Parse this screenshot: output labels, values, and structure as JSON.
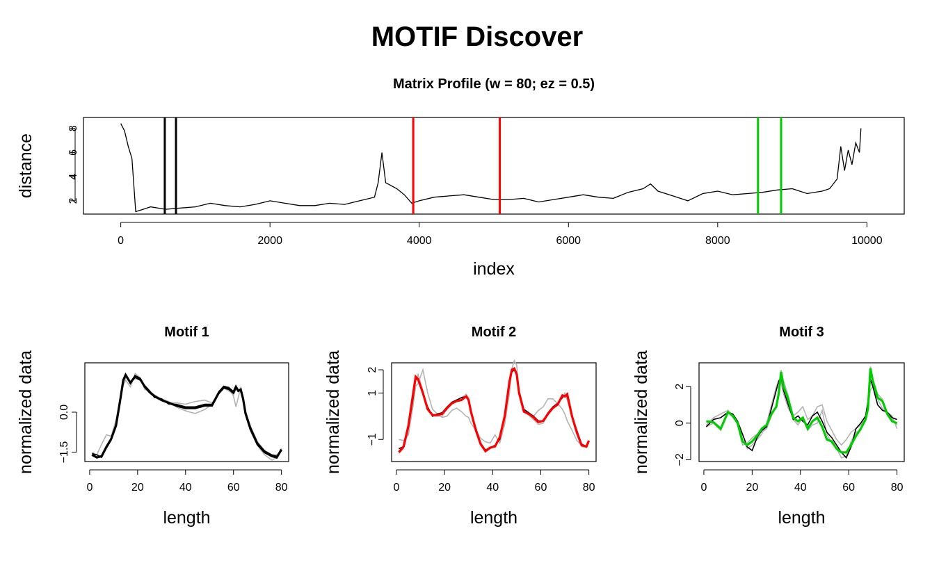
{
  "title": "MOTIF Discover",
  "colors": {
    "motif1": "#000000",
    "motif2": "#ff0000",
    "motif3": "#00cd00",
    "neighbor": "#b3b3b3",
    "profile": "#000000"
  },
  "chart_data": [
    {
      "type": "line",
      "title": "Matrix Profile (w = 80; ez = 0.5)",
      "xlabel": "index",
      "ylabel": "distance",
      "xlim": [
        -500,
        10500
      ],
      "ylim": [
        0.9,
        8.9
      ],
      "xticks": [
        "0",
        "2000",
        "4000",
        "6000",
        "8000",
        "10000"
      ],
      "yticks": [
        "2",
        "4",
        "6",
        "8"
      ],
      "x": [
        0,
        50,
        100,
        150,
        200,
        300,
        400,
        600,
        800,
        1000,
        1200,
        1400,
        1600,
        1800,
        2000,
        2200,
        2400,
        2600,
        2800,
        3000,
        3200,
        3400,
        3450,
        3500,
        3550,
        3700,
        3800,
        3900,
        4000,
        4200,
        4400,
        4600,
        4800,
        5000,
        5200,
        5400,
        5600,
        5800,
        6000,
        6200,
        6400,
        6600,
        6800,
        7000,
        7100,
        7200,
        7400,
        7600,
        7800,
        8000,
        8200,
        8400,
        8600,
        8800,
        9000,
        9200,
        9400,
        9500,
        9600,
        9650,
        9700,
        9750,
        9800,
        9850,
        9900,
        9920
      ],
      "y": [
        8.4,
        7.8,
        6.5,
        5.5,
        1.1,
        1.3,
        1.5,
        1.3,
        1.4,
        1.5,
        1.8,
        1.6,
        1.5,
        1.7,
        2.0,
        1.8,
        1.6,
        1.6,
        1.8,
        1.7,
        2.0,
        2.3,
        3.5,
        6.0,
        3.5,
        3.0,
        2.5,
        1.8,
        2.0,
        2.3,
        2.4,
        2.5,
        2.3,
        2.1,
        2.1,
        2.2,
        1.9,
        2.1,
        2.3,
        2.5,
        2.3,
        2.2,
        2.7,
        3.0,
        3.4,
        2.8,
        2.4,
        2.0,
        2.6,
        2.8,
        2.5,
        2.6,
        2.7,
        2.9,
        3.0,
        2.6,
        2.8,
        3.0,
        3.8,
        6.5,
        4.5,
        6.2,
        5.0,
        6.8,
        6.0,
        8.0
      ],
      "motif_markers": [
        {
          "motif": "1",
          "x": [
            590,
            740
          ]
        },
        {
          "motif": "2",
          "x": [
            3920,
            5080
          ]
        },
        {
          "motif": "3",
          "x": [
            8540,
            8850
          ]
        }
      ]
    },
    {
      "type": "line",
      "title": "Motif 1",
      "xlabel": "length",
      "ylabel": "normalized data",
      "xlim": [
        -2,
        83
      ],
      "ylim": [
        -1.85,
        1.85
      ],
      "xticks": [
        "0",
        "20",
        "40",
        "60",
        "80"
      ],
      "yticks": [
        "-1.5",
        "0.0"
      ],
      "x": [
        1,
        3,
        5,
        7,
        9,
        11,
        13,
        14,
        15,
        17,
        19,
        21,
        23,
        25,
        27,
        30,
        33,
        36,
        40,
        44,
        48,
        51,
        54,
        56,
        58,
        60,
        61,
        62,
        63,
        64,
        65,
        67,
        70,
        73,
        76,
        78,
        80
      ],
      "series": [
        {
          "values": [
            -1.6,
            -1.7,
            -1.65,
            -1.3,
            -1.0,
            -0.5,
            0.6,
            1.2,
            1.4,
            1.1,
            1.35,
            1.25,
            0.95,
            0.75,
            0.6,
            0.45,
            0.35,
            0.25,
            0.15,
            0.15,
            0.25,
            0.25,
            0.75,
            0.95,
            0.9,
            0.75,
            0.95,
            0.8,
            0.85,
            0.5,
            -0.05,
            -0.6,
            -1.2,
            -1.5,
            -1.65,
            -1.7,
            -1.4
          ]
        },
        {
          "values": [
            -1.55,
            -1.6,
            -1.7,
            -1.35,
            -1.05,
            -0.45,
            0.55,
            1.15,
            1.35,
            1.15,
            1.3,
            1.2,
            1.0,
            0.8,
            0.55,
            0.5,
            0.3,
            0.3,
            0.2,
            0.2,
            0.3,
            0.3,
            0.7,
            0.9,
            0.85,
            0.7,
            0.9,
            0.85,
            0.8,
            0.45,
            0.0,
            -0.55,
            -1.15,
            -1.45,
            -1.6,
            -1.65,
            -1.45
          ]
        },
        {
          "values": [
            -1.6,
            -1.6,
            -1.2,
            -0.85,
            -0.9,
            -0.3,
            0.6,
            1.0,
            1.2,
            0.95,
            1.45,
            1.3,
            0.85,
            0.8,
            0.65,
            0.5,
            0.4,
            0.2,
            0.05,
            -0.05,
            0.1,
            0.3,
            0.8,
            0.9,
            0.95,
            0.6,
            0.2,
            0.55,
            0.95,
            0.45,
            -0.1,
            -0.7,
            -1.25,
            -1.6,
            -1.8,
            -1.7,
            -1.35
          ]
        },
        {
          "values": [
            -1.5,
            -1.6,
            -1.65,
            -1.3,
            -0.95,
            -0.5,
            0.5,
            1.1,
            1.3,
            1.15,
            1.25,
            1.2,
            0.95,
            0.75,
            0.65,
            0.5,
            0.35,
            0.35,
            0.3,
            0.4,
            0.45,
            0.35,
            0.7,
            0.9,
            0.8,
            0.65,
            0.85,
            0.8,
            0.75,
            0.5,
            0.05,
            -0.5,
            -1.1,
            -1.45,
            -1.6,
            -1.6,
            -1.45
          ]
        }
      ]
    },
    {
      "type": "line",
      "title": "Motif 2",
      "xlabel": "length",
      "ylabel": "normalized data",
      "xlim": [
        -2,
        83
      ],
      "ylim": [
        -1.95,
        2.3
      ],
      "xticks": [
        "0",
        "20",
        "40",
        "60",
        "80"
      ],
      "yticks": [
        "-1",
        "1",
        "2"
      ],
      "x": [
        1,
        3,
        5,
        7,
        8,
        9,
        11,
        13,
        15,
        17,
        19,
        21,
        23,
        25,
        27,
        29,
        30,
        31,
        33,
        35,
        37,
        39,
        41,
        43,
        45,
        47,
        48,
        49,
        50,
        51,
        53,
        55,
        57,
        59,
        61,
        63,
        65,
        67,
        69,
        70,
        71,
        73,
        75,
        77,
        79,
        80
      ],
      "series": [
        {
          "values": [
            -1.55,
            -1.3,
            -0.4,
            1.0,
            1.7,
            1.6,
            1.0,
            0.3,
            0.05,
            0.05,
            0.1,
            0.35,
            0.55,
            0.65,
            0.7,
            0.85,
            0.7,
            0.2,
            -0.6,
            -1.2,
            -1.5,
            -1.35,
            -1.3,
            -0.9,
            0.0,
            1.5,
            2.0,
            2.05,
            1.8,
            1.0,
            0.2,
            0.1,
            -0.05,
            -0.25,
            -0.2,
            0.1,
            0.35,
            0.5,
            0.9,
            0.85,
            0.95,
            0.0,
            -0.7,
            -1.25,
            -1.3,
            -1.05
          ]
        },
        {
          "values": [
            -1.4,
            -1.3,
            -0.5,
            0.8,
            1.6,
            1.6,
            1.0,
            0.4,
            0.0,
            0.1,
            0.15,
            0.4,
            0.6,
            0.7,
            0.8,
            0.85,
            0.7,
            0.2,
            -0.5,
            -1.15,
            -1.45,
            -1.35,
            -1.25,
            -1.0,
            0.0,
            1.4,
            1.9,
            2.0,
            1.8,
            1.1,
            0.3,
            0.15,
            0.0,
            -0.2,
            -0.2,
            0.15,
            0.4,
            0.55,
            0.8,
            0.9,
            0.85,
            0.0,
            -0.6,
            -1.2,
            -1.3,
            -1.1
          ]
        },
        {
          "values": [
            -1.0,
            -1.05,
            -0.8,
            0.5,
            1.3,
            1.4,
            2.0,
            1.0,
            0.3,
            0.1,
            -0.05,
            0.0,
            0.25,
            0.35,
            0.2,
            0.0,
            -0.05,
            -0.3,
            -0.6,
            -0.95,
            -1.1,
            -1.15,
            -0.8,
            -1.15,
            -0.35,
            1.0,
            2.05,
            2.4,
            2.2,
            1.0,
            0.2,
            0.05,
            0.0,
            0.25,
            0.4,
            0.75,
            0.75,
            0.55,
            0.3,
            0.1,
            -0.2,
            -0.6,
            -1.05,
            -1.25,
            -1.3,
            -1.15
          ]
        },
        {
          "values": [
            -1.6,
            -1.4,
            -0.6,
            0.9,
            1.5,
            1.8,
            1.1,
            0.3,
            0.0,
            0.0,
            0.0,
            0.3,
            0.6,
            0.7,
            0.8,
            0.95,
            0.8,
            0.2,
            -0.6,
            -1.2,
            -1.55,
            -1.4,
            -1.3,
            -0.95,
            -0.1,
            1.3,
            2.0,
            2.1,
            1.9,
            1.1,
            0.25,
            0.05,
            -0.15,
            -0.35,
            -0.3,
            0.05,
            0.4,
            0.6,
            0.8,
            1.0,
            0.7,
            -0.05,
            -0.75,
            -1.3,
            -1.35,
            -1.1
          ]
        }
      ]
    },
    {
      "type": "line",
      "title": "Motif 3",
      "xlabel": "length",
      "ylabel": "normalized data",
      "xlim": [
        -2,
        83
      ],
      "ylim": [
        -2.1,
        3.3
      ],
      "xticks": [
        "0",
        "20",
        "40",
        "60",
        "80"
      ],
      "yticks": [
        "-2",
        "0",
        "2"
      ],
      "x": [
        1,
        4,
        7,
        10,
        12,
        14,
        16,
        18,
        20,
        22,
        24,
        26,
        28,
        30,
        31,
        32,
        33,
        35,
        37,
        39,
        41,
        43,
        45,
        47,
        49,
        51,
        53,
        55,
        57,
        59,
        61,
        63,
        65,
        67,
        68,
        69,
        70,
        72,
        74,
        76,
        78,
        80
      ],
      "series": [
        {
          "values": [
            0.1,
            0.05,
            -0.3,
            0.6,
            0.4,
            0.0,
            -1.0,
            -1.2,
            -1.0,
            -0.7,
            -0.3,
            -0.1,
            0.5,
            0.9,
            1.6,
            2.8,
            2.0,
            1.3,
            0.3,
            0.1,
            0.3,
            -0.3,
            0.1,
            0.3,
            -0.2,
            -0.9,
            -1.0,
            -1.4,
            -1.6,
            -1.6,
            -1.2,
            -0.7,
            -0.3,
            0.2,
            0.8,
            3.0,
            2.3,
            1.4,
            1.2,
            0.5,
            0.1,
            0.0
          ]
        },
        {
          "values": [
            -0.2,
            0.2,
            0.3,
            0.6,
            0.5,
            0.1,
            -0.6,
            -1.3,
            -1.5,
            -0.8,
            -0.4,
            -0.2,
            0.8,
            1.8,
            2.3,
            2.5,
            1.8,
            1.0,
            0.2,
            0.4,
            0.1,
            -0.1,
            0.4,
            0.6,
            0.1,
            -0.5,
            -0.8,
            -1.2,
            -1.6,
            -1.9,
            -1.3,
            -0.3,
            0.0,
            0.4,
            1.2,
            2.4,
            2.0,
            1.0,
            0.7,
            0.6,
            0.3,
            0.2
          ]
        },
        {
          "values": [
            -0.1,
            0.3,
            0.5,
            0.7,
            0.3,
            0.0,
            -0.9,
            -1.4,
            -1.2,
            -0.9,
            -0.6,
            0.0,
            1.0,
            2.0,
            2.3,
            2.2,
            1.6,
            0.8,
            0.4,
            0.6,
            0.9,
            0.2,
            0.4,
            0.9,
            1.0,
            0.1,
            -0.4,
            -0.9,
            -1.2,
            -0.9,
            -0.5,
            -0.3,
            -0.1,
            0.3,
            0.9,
            1.8,
            2.0,
            1.3,
            0.8,
            0.6,
            0.4,
            -0.3
          ]
        },
        {
          "values": [
            -0.2,
            0.0,
            -0.4,
            0.7,
            0.4,
            -0.1,
            -1.2,
            -1.1,
            -0.8,
            -0.6,
            -0.5,
            -0.3,
            0.4,
            0.9,
            1.8,
            2.9,
            2.3,
            1.5,
            0.2,
            -0.1,
            0.3,
            -0.4,
            -0.1,
            0.0,
            0.7,
            -0.6,
            -1.1,
            -1.4,
            -1.9,
            -1.8,
            -1.0,
            -0.5,
            -0.4,
            0.3,
            1.0,
            3.1,
            2.4,
            1.6,
            1.3,
            0.4,
            0.3,
            -0.1
          ]
        }
      ]
    }
  ]
}
